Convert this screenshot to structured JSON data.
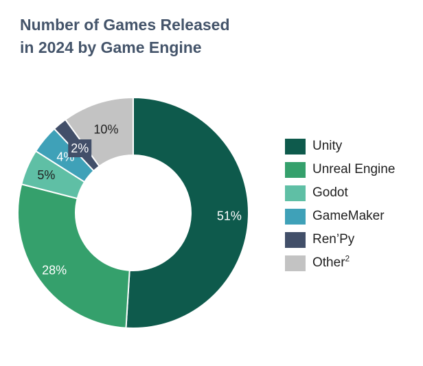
{
  "title_lines": [
    "Number of Games Released",
    "in 2024 by Game Engine"
  ],
  "chart_data": {
    "type": "pie",
    "variant": "donut",
    "title": "Number of Games Released in 2024 by Game Engine",
    "categories": [
      "Unity",
      "Unreal Engine",
      "Godot",
      "GameMaker",
      "Ren’Py",
      "Other"
    ],
    "values": [
      51,
      28,
      5,
      4,
      2,
      10
    ],
    "labels": [
      "51%",
      "28%",
      "5%",
      "4%",
      "2%",
      "10%"
    ],
    "legend_labels": [
      "Unity",
      "Unreal Engine",
      "Godot",
      "GameMaker",
      "Ren’Py",
      "Other"
    ],
    "legend_footnote": "2",
    "legend_position": "right",
    "colors": [
      "#0e5a4c",
      "#35a06c",
      "#5fbfa5",
      "#3fa1b8",
      "#424f69",
      "#c3c3c3"
    ],
    "label_colors": [
      "#ffffff",
      "#ffffff",
      "#1f1f1f",
      "#ffffff",
      "#ffffff",
      "#1f1f1f"
    ],
    "start_angle_deg": 0,
    "direction": "clockwise"
  }
}
